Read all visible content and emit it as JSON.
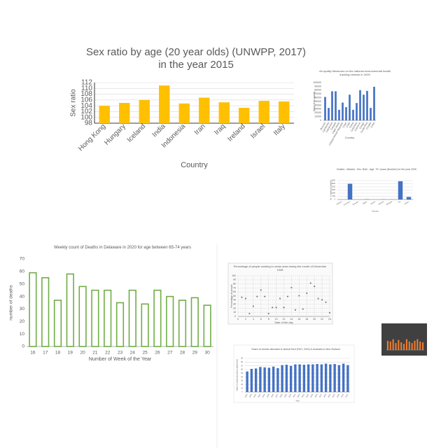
{
  "chart_data": [
    {
      "type": "bar",
      "title": "Sex ratio by age (20 year olds) (UNWPP, 2017) in the year 2015",
      "x_label": "Country",
      "y_label": "Sex ratio",
      "categories": [
        "Hong Kong",
        "Hungary",
        "Iceland",
        "India",
        "Indonesia",
        "Iran",
        "Iraq",
        "Ireland",
        "Israel",
        "Italy"
      ],
      "values": [
        104,
        105,
        106,
        111,
        104.8,
        106.8,
        105.2,
        103.3,
        105.7,
        105.5
      ],
      "color": "#ffc000",
      "ylim": [
        98,
        112
      ],
      "yticks": [
        98,
        100,
        102,
        104,
        106,
        108,
        110,
        112
      ],
      "grid": true
    },
    {
      "type": "bar",
      "title": "Air quality Measures on the national environmental health tracking network in 2009",
      "x_label": "Country",
      "y_label": "Value of air quality",
      "categories": [
        "Burundi",
        "Cambodia",
        "Cameroon",
        "Canada",
        "Cape Verde",
        "Central African Republic",
        "Chad",
        "Chile",
        "China",
        "Colombia",
        "Comoros",
        "Congo",
        "Costa Rica",
        "Croatia",
        "Cuba"
      ],
      "values": [
        62000,
        33000,
        77000,
        77000,
        28000,
        47000,
        35000,
        68000,
        28000,
        46000,
        80000,
        68000,
        78000,
        33000,
        89000
      ],
      "color": "#4472c4",
      "ylim": [
        0,
        100000
      ],
      "yticks": [
        0,
        10000,
        20000,
        30000,
        40000,
        50000,
        60000,
        70000,
        80000,
        90000,
        100000
      ],
      "grid": false
    },
    {
      "type": "bar",
      "title": "Deaths - Malaria - Sex: Both - Age: 70+ years (Number) for the year 2005",
      "x_label": "Country",
      "y_label": "No. of deaths (in Number)",
      "categories": [
        "Djibouti",
        "Dominica",
        "Ecuador",
        "Egypt",
        "Eritrea",
        "Estonia",
        "Ethiopia",
        "Fiji",
        "Gabon"
      ],
      "values": [
        0,
        2500,
        0,
        50,
        0,
        30,
        20,
        2900,
        400
      ],
      "color": "#4472c4",
      "ylim": [
        0,
        3000
      ],
      "yticks": [
        0,
        500,
        1000,
        1500,
        2000,
        2500,
        3000
      ],
      "grid": true
    },
    {
      "type": "bar",
      "title": "Weekly count of Deaths in Delaware in 2020 for age between 65-74 years",
      "x_label": "Number of Week of the Year",
      "y_label": "number of deaths",
      "categories": [
        "16",
        "17",
        "18",
        "19",
        "20",
        "21",
        "22",
        "23",
        "24",
        "25",
        "26",
        "27",
        "28",
        "29",
        "30"
      ],
      "values": [
        59,
        55,
        37,
        58,
        48,
        45,
        45,
        35,
        45,
        34,
        45,
        40,
        37,
        39,
        33
      ],
      "color": "#70ad47",
      "bar_style": "outline",
      "ylim": [
        0,
        70
      ],
      "yticks": [
        0,
        10,
        20,
        30,
        40,
        50,
        60,
        70
      ],
      "grid": false
    },
    {
      "type": "scatter",
      "title": "Percentage of people working in urban area during the month of December 1938",
      "x_label": "Date of the day",
      "y_label": "Percentage of people",
      "x": [
        1,
        2,
        3,
        4,
        5,
        6,
        7,
        8,
        9,
        10,
        11,
        12,
        13,
        14,
        15,
        16,
        17,
        18,
        19,
        20,
        21,
        22,
        23,
        24
      ],
      "values": [
        47,
        44,
        7,
        25,
        49,
        65,
        49,
        7,
        22,
        22,
        44,
        22,
        49,
        71,
        16,
        51,
        18,
        57,
        82,
        74,
        44,
        41,
        35,
        9
      ],
      "color": "#7f7f7f",
      "xlim": [
        0,
        24
      ],
      "xticks": [
        0,
        2,
        4,
        6,
        8,
        10,
        12,
        14,
        16,
        18,
        20,
        22,
        24
      ],
      "ylim": [
        0,
        100
      ],
      "yticks": [
        0,
        10,
        20,
        30,
        40,
        50,
        60,
        70,
        80,
        90,
        100
      ],
      "grid": true
    },
    {
      "type": "bar",
      "title": "Share of cereals allocated to animal feed (FAO, 2020) in Australia & New Zealand",
      "x_label": "Year",
      "y_label": "Share of cereals allocated to animal feed",
      "categories": [
        "1990",
        "1991",
        "1992",
        "1993",
        "1994",
        "1995",
        "1996",
        "1997",
        "1998",
        "1999",
        "2000",
        "2001",
        "2002",
        "2003",
        "2004",
        "2005",
        "2006",
        "2007",
        "2008",
        "2009",
        "2010",
        "2011",
        "2012",
        "2013"
      ],
      "values": [
        55,
        62,
        63,
        67,
        66,
        65,
        68,
        64,
        72,
        73,
        70,
        74,
        74,
        73,
        74,
        74,
        75,
        74,
        76,
        74,
        75,
        72,
        76,
        72
      ],
      "color": "#4472c4",
      "ylim": [
        0,
        90
      ],
      "yticks": [
        0,
        10,
        20,
        30,
        40,
        50,
        60,
        70,
        80,
        90
      ],
      "grid": true
    },
    {
      "type": "bar",
      "values": [
        60,
        55,
        70,
        45,
        65,
        50,
        40,
        70,
        55,
        45,
        60,
        70,
        55,
        50
      ],
      "color": "#ed7d31",
      "ylim": [
        0,
        100
      ],
      "grid": false
    }
  ]
}
